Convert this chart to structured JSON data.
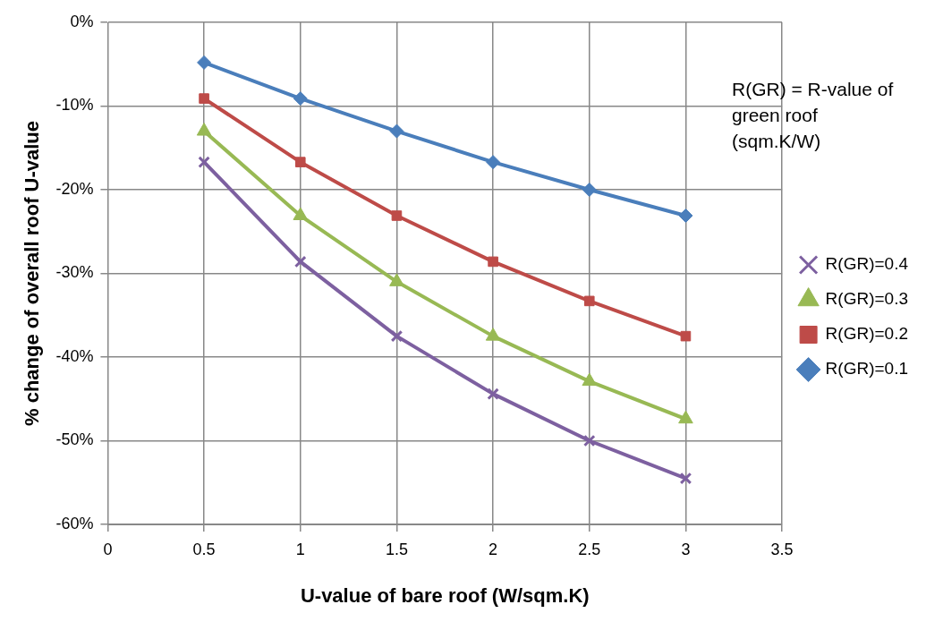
{
  "chart_data": {
    "type": "line",
    "xlabel": "U-value of bare roof (W/sqm.K)",
    "ylabel": "% change of overall roof U-value",
    "legend_title": "R(GR) = R-value of green roof (sqm.K/W)",
    "legend": "right",
    "grid": true,
    "x": [
      0.5,
      1,
      1.5,
      2,
      2.5,
      3
    ],
    "xlim": [
      0,
      3.5
    ],
    "xticks": [
      0,
      0.5,
      1,
      1.5,
      2,
      2.5,
      3,
      3.5
    ],
    "ylim": [
      -60,
      0
    ],
    "yticks": [
      {
        "value": -60,
        "label": "-60%"
      },
      {
        "value": -50,
        "label": "-50%"
      },
      {
        "value": -40,
        "label": "-40%"
      },
      {
        "value": -30,
        "label": "-30%"
      },
      {
        "value": -20,
        "label": "-20%"
      },
      {
        "value": -10,
        "label": "-10%"
      },
      {
        "value": 0,
        "label": "0%"
      }
    ],
    "series": [
      {
        "name": "R(GR)=0.1",
        "color": "#4a7ebb",
        "marker": "diamond",
        "values": [
          -4.8,
          -9.1,
          -13.0,
          -16.7,
          -20.0,
          -23.1
        ]
      },
      {
        "name": "R(GR)=0.2",
        "color": "#be4b48",
        "marker": "square",
        "values": [
          -9.1,
          -16.7,
          -23.1,
          -28.6,
          -33.3,
          -37.5
        ]
      },
      {
        "name": "R(GR)=0.3",
        "color": "#98b954",
        "marker": "triangle",
        "values": [
          -13.0,
          -23.1,
          -31.0,
          -37.5,
          -42.9,
          -47.4
        ]
      },
      {
        "name": "R(GR)=0.4",
        "color": "#7d60a0",
        "marker": "cross",
        "values": [
          -16.7,
          -28.6,
          -37.5,
          -44.4,
          -50.0,
          -54.5
        ]
      }
    ]
  }
}
